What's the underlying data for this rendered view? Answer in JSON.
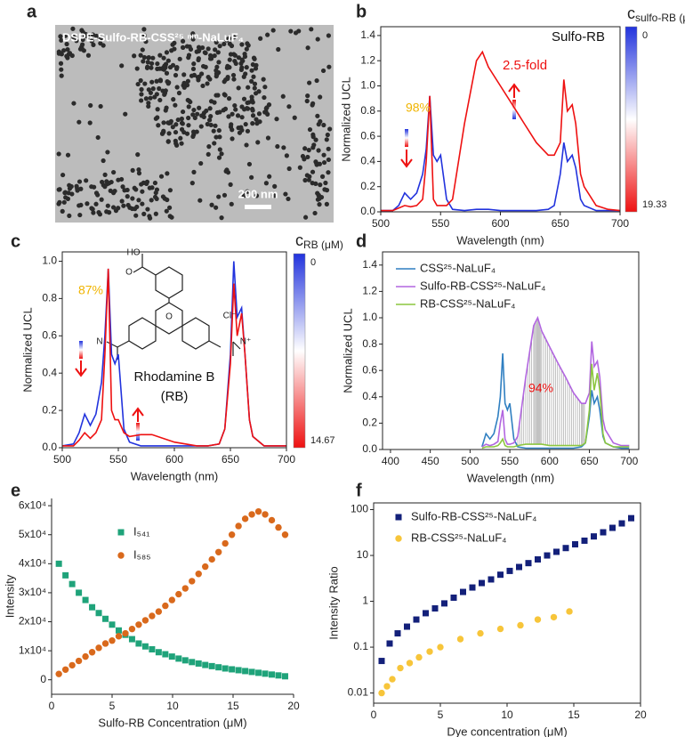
{
  "chart_data": [
    {
      "type": "image",
      "panel": "a",
      "label": "DSPE-Sulfo-RB-CSS²⁵ ⁿᵐ-NaLuF₄",
      "scale_bar": "200 nm"
    },
    {
      "type": "line",
      "panel": "b",
      "xlabel": "Wavelength (nm)",
      "ylabel": "Normalized UCL",
      "frame": "box",
      "x": [
        500,
        510,
        515,
        520,
        525,
        530,
        535,
        538,
        541,
        544,
        547,
        550,
        555,
        560,
        570,
        580,
        585,
        590,
        600,
        610,
        620,
        630,
        640,
        645,
        650,
        653,
        656,
        660,
        663,
        667,
        670,
        680,
        690,
        700
      ],
      "series": [
        {
          "color": "#2233dd",
          "values": [
            0.01,
            0.01,
            0.05,
            0.15,
            0.1,
            0.15,
            0.3,
            0.5,
            0.92,
            0.45,
            0.4,
            0.45,
            0.1,
            0.02,
            0.01,
            0.02,
            0.02,
            0.02,
            0.01,
            0.01,
            0.01,
            0.01,
            0.02,
            0.05,
            0.3,
            0.55,
            0.4,
            0.45,
            0.35,
            0.1,
            0.05,
            0.01,
            0.01,
            0.01
          ]
        },
        {
          "color": "#ee1111",
          "values": [
            0.01,
            0.01,
            0.03,
            0.05,
            0.04,
            0.05,
            0.1,
            0.4,
            0.92,
            0.1,
            0.05,
            0.05,
            0.05,
            0.1,
            0.7,
            1.2,
            1.27,
            1.15,
            1.0,
            0.85,
            0.7,
            0.55,
            0.45,
            0.45,
            0.55,
            1.05,
            0.8,
            0.85,
            0.7,
            0.3,
            0.2,
            0.05,
            0.02,
            0.01
          ]
        }
      ],
      "xlim": [
        500,
        700
      ],
      "xticks": [
        500,
        550,
        600,
        650,
        700
      ],
      "ylim": [
        0,
        1.47
      ],
      "yticks": [
        {
          "value": 0,
          "label": "0.0"
        },
        0.2,
        0.4,
        0.6,
        0.8,
        {
          "value": 1,
          "label": "1.0"
        },
        1.2,
        1.4
      ],
      "colorbar": {
        "title": "c",
        "subscript": "sulfo-RB (μM)",
        "colors": [
          "#2233dd",
          "#ffffff",
          "#ee1111"
        ],
        "ticks": [
          0,
          19.33
        ]
      },
      "annotations": [
        {
          "text": "Sulfo-RB",
          "color": "#111111"
        },
        {
          "text": "2.5-fold",
          "color": "#ee1111"
        },
        {
          "text": "98%",
          "color": "#f0b400"
        }
      ]
    },
    {
      "type": "line",
      "panel": "c",
      "xlabel": "Wavelength (nm)",
      "ylabel": "Normalized UCL",
      "frame": "box",
      "x": [
        500,
        510,
        515,
        520,
        525,
        530,
        535,
        538,
        541,
        544,
        547,
        550,
        555,
        560,
        570,
        580,
        585,
        590,
        600,
        610,
        620,
        630,
        640,
        645,
        650,
        653,
        656,
        660,
        663,
        667,
        670,
        680,
        690,
        700
      ],
      "series": [
        {
          "color": "#2233dd",
          "values": [
            0.01,
            0.02,
            0.08,
            0.18,
            0.12,
            0.18,
            0.35,
            0.6,
            0.96,
            0.5,
            0.45,
            0.5,
            0.1,
            0.03,
            0.01,
            0.01,
            0.01,
            0.01,
            0.01,
            0.01,
            0.01,
            0.01,
            0.02,
            0.1,
            0.5,
            1.0,
            0.7,
            0.75,
            0.5,
            0.15,
            0.06,
            0.01,
            0.01,
            0.01
          ]
        },
        {
          "color": "#ee1111",
          "values": [
            0.01,
            0.01,
            0.04,
            0.08,
            0.05,
            0.08,
            0.15,
            0.5,
            0.96,
            0.2,
            0.15,
            0.15,
            0.08,
            0.06,
            0.07,
            0.07,
            0.06,
            0.05,
            0.03,
            0.02,
            0.01,
            0.01,
            0.02,
            0.1,
            0.45,
            0.88,
            0.6,
            0.72,
            0.5,
            0.15,
            0.06,
            0.01,
            0.01,
            0.01
          ]
        }
      ],
      "xlim": [
        500,
        700
      ],
      "xticks": [
        500,
        550,
        600,
        650,
        700
      ],
      "ylim": [
        0,
        1.05
      ],
      "yticks": [
        {
          "value": 0,
          "label": "0.0"
        },
        0.2,
        0.4,
        0.6,
        0.8,
        {
          "value": 1,
          "label": "1.0"
        }
      ],
      "colorbar": {
        "title": "c",
        "subscript": "RB (μM)",
        "colors": [
          "#2233dd",
          "#ffffff",
          "#ee1111"
        ],
        "ticks": [
          0,
          14.67
        ]
      },
      "annotations": [
        {
          "text": "87%",
          "color": "#f0b400"
        },
        {
          "text": "Rhodamine B",
          "color": "#111111"
        },
        {
          "text": "(RB)",
          "color": "#111111"
        }
      ],
      "structure_labels": [
        "HO",
        "O",
        "O",
        "N",
        "N⁺",
        "Cl⁻"
      ]
    },
    {
      "type": "line",
      "panel": "d",
      "xlabel": "Wavelength (nm)",
      "ylabel": "Normalized UCL",
      "frame": "box",
      "x": [
        500,
        510,
        515,
        520,
        525,
        530,
        535,
        538,
        541,
        544,
        547,
        550,
        555,
        560,
        570,
        580,
        585,
        590,
        600,
        610,
        620,
        630,
        640,
        645,
        650,
        653,
        656,
        660,
        663,
        667,
        670,
        680,
        690,
        700
      ],
      "series": [
        {
          "name": "CSS²⁵-NaLuF₄",
          "color": "#2f7fc1",
          "values": [
            null,
            null,
            0.02,
            0.12,
            0.08,
            0.12,
            0.25,
            0.4,
            0.73,
            0.35,
            0.3,
            0.35,
            0.08,
            0.02,
            0.01,
            0.01,
            0.01,
            0.01,
            0.01,
            0.01,
            0.01,
            0.01,
            0.02,
            0.05,
            0.25,
            0.45,
            0.35,
            0.4,
            0.3,
            0.1,
            0.05,
            0.02,
            0.01,
            0.01
          ]
        },
        {
          "name": "Sulfo-RB-CSS²⁵-NaLuF₄",
          "color": "#b266e0",
          "values": [
            null,
            null,
            0.02,
            0.04,
            0.03,
            0.04,
            0.06,
            0.2,
            0.3,
            0.08,
            0.04,
            0.04,
            0.05,
            0.1,
            0.55,
            0.94,
            1.0,
            0.9,
            0.78,
            0.66,
            0.55,
            0.43,
            0.35,
            0.35,
            0.43,
            0.82,
            0.63,
            0.67,
            0.55,
            0.23,
            0.15,
            0.05,
            0.03,
            0.03
          ]
        },
        {
          "name": "RB-CSS²⁵-NaLuF₄",
          "color": "#8cc63f",
          "values": [
            null,
            null,
            0.01,
            0.02,
            0.02,
            0.02,
            0.03,
            0.05,
            0.08,
            0.03,
            0.02,
            0.02,
            0.02,
            0.03,
            0.04,
            0.04,
            0.04,
            0.04,
            0.03,
            0.03,
            0.03,
            0.03,
            0.03,
            0.05,
            0.3,
            0.65,
            0.45,
            0.58,
            0.45,
            0.12,
            0.05,
            0.02,
            0.02,
            0.02
          ]
        }
      ],
      "xlim": [
        390,
        712
      ],
      "xticks": [
        400,
        450,
        500,
        550,
        600,
        650,
        700
      ],
      "ylim": [
        0,
        1.5
      ],
      "yticks": [
        {
          "value": 0,
          "label": "0.0"
        },
        0.2,
        0.4,
        0.6,
        0.8,
        {
          "value": 1,
          "label": "1.0"
        },
        1.2,
        1.4
      ],
      "annotations": [
        {
          "text": "94%",
          "color": "#ee1111"
        }
      ]
    },
    {
      "type": "scatter",
      "panel": "e",
      "xlabel": "Sulfo-RB Concentration (μM)",
      "ylabel": "Intensity",
      "frame": "axes",
      "series": [
        {
          "name": "I₅₄₁",
          "color": "#1fa37a",
          "marker": "square",
          "x": [
            0.6,
            1.15,
            1.7,
            2.25,
            2.8,
            3.35,
            3.9,
            4.45,
            5,
            5.55,
            6.1,
            6.65,
            7.2,
            7.75,
            8.3,
            8.85,
            9.4,
            9.95,
            10.5,
            11.05,
            11.6,
            12.15,
            12.7,
            13.25,
            13.8,
            14.35,
            14.9,
            15.45,
            16,
            16.55,
            17.1,
            17.65,
            18.2,
            18.75,
            19.3
          ],
          "values": [
            40000,
            36000,
            33000,
            30000,
            27500,
            25000,
            23000,
            21000,
            19000,
            17000,
            15500,
            14000,
            12500,
            11500,
            10500,
            9500,
            8800,
            8000,
            7300,
            6700,
            6100,
            5600,
            5100,
            4700,
            4300,
            3900,
            3600,
            3300,
            3000,
            2700,
            2400,
            2100,
            1800,
            1500,
            1200
          ]
        },
        {
          "name": "I₅₈₅",
          "color": "#d9691c",
          "marker": "circle",
          "x": [
            0.6,
            1.15,
            1.7,
            2.25,
            2.8,
            3.35,
            3.9,
            4.45,
            5,
            5.55,
            6.1,
            6.65,
            7.2,
            7.75,
            8.3,
            8.85,
            9.4,
            9.95,
            10.5,
            11.05,
            11.6,
            12.15,
            12.7,
            13.25,
            13.8,
            14.35,
            14.9,
            15.45,
            16,
            16.55,
            17.1,
            17.65,
            18.2,
            18.75,
            19.3
          ],
          "values": [
            2000,
            3500,
            5000,
            6500,
            8000,
            9500,
            11000,
            12500,
            13500,
            15000,
            16000,
            17500,
            19000,
            20500,
            22000,
            23500,
            25500,
            27500,
            29500,
            31500,
            34000,
            36500,
            39000,
            41500,
            44000,
            47000,
            50000,
            53000,
            55500,
            57000,
            58000,
            57000,
            55000,
            52500,
            50000
          ]
        }
      ],
      "xlim": [
        0,
        20
      ],
      "xticks": [
        0,
        5,
        10,
        15,
        20
      ],
      "ylim": [
        -5000,
        62500
      ],
      "yticks": [
        0,
        {
          "value": 10000,
          "label": "1x10⁴"
        },
        {
          "value": 20000,
          "label": "2x10⁴"
        },
        {
          "value": 30000,
          "label": "3x10⁴"
        },
        {
          "value": 40000,
          "label": "4x10⁴"
        },
        {
          "value": 50000,
          "label": "5x10⁴"
        },
        {
          "value": 60000,
          "label": "6x10⁴"
        }
      ]
    },
    {
      "type": "scatter",
      "panel": "f",
      "xlabel": "Dye concentration (μM)",
      "ylabel": "Intensity Ratio",
      "frame": "box",
      "yscale": "log",
      "series": [
        {
          "name": "Sulfo-RB-CSS²⁵-NaLuF₄",
          "color": "#13207a",
          "marker": "square",
          "x": [
            0.6,
            1.2,
            1.8,
            2.5,
            3.2,
            3.9,
            4.6,
            5.3,
            6,
            6.7,
            7.4,
            8.1,
            8.8,
            9.5,
            10.2,
            10.9,
            11.6,
            12.3,
            13,
            13.7,
            14.4,
            15.1,
            15.8,
            16.5,
            17.2,
            17.9,
            18.6,
            19.3
          ],
          "values": [
            0.05,
            0.12,
            0.2,
            0.28,
            0.4,
            0.55,
            0.7,
            0.9,
            1.2,
            1.6,
            2,
            2.5,
            3,
            3.8,
            4.6,
            5.6,
            6.8,
            8.2,
            10,
            12,
            14.5,
            17.5,
            21,
            26,
            32,
            40,
            50,
            65
          ]
        },
        {
          "name": "RB-CSS²⁵-NaLuF₄",
          "color": "#f7c53a",
          "marker": "circle",
          "x": [
            0.6,
            1,
            1.4,
            2,
            2.7,
            3.4,
            4.2,
            5,
            6.5,
            8,
            9.5,
            11,
            12.3,
            13.5,
            14.67
          ],
          "values": [
            0.01,
            0.014,
            0.02,
            0.035,
            0.045,
            0.06,
            0.08,
            0.1,
            0.15,
            0.2,
            0.25,
            0.3,
            0.4,
            0.45,
            0.6
          ]
        }
      ],
      "xlim": [
        0,
        20
      ],
      "xticks": [
        0,
        5,
        10,
        15,
        20
      ],
      "ylim": [
        0.006,
        140
      ],
      "yticks": [
        0.01,
        0.1,
        1,
        10,
        100
      ]
    }
  ]
}
